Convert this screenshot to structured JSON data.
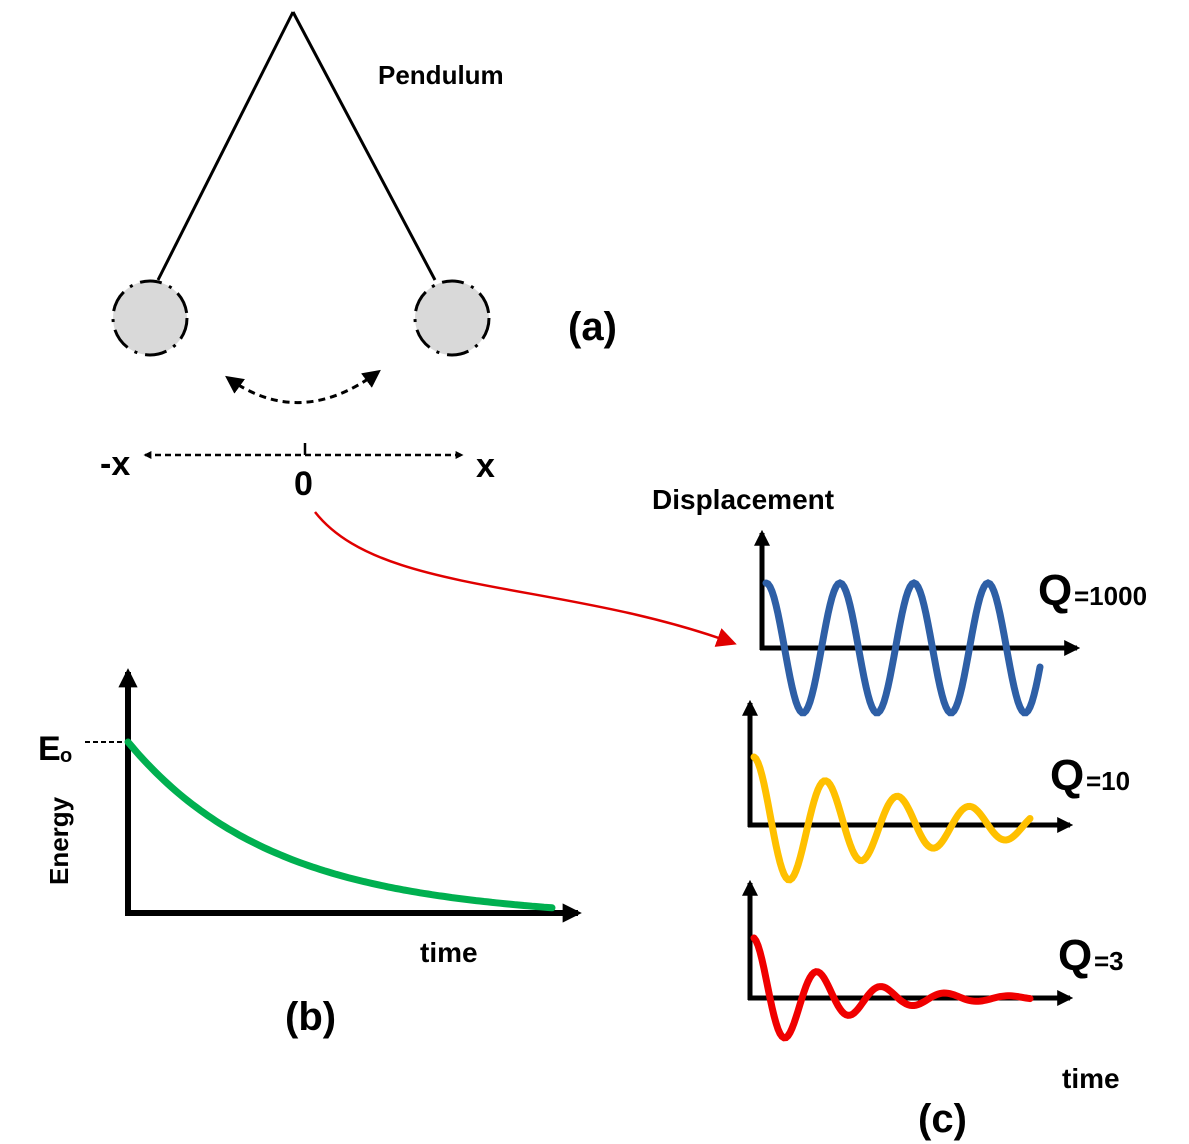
{
  "panel_a": {
    "title": "Pendulum",
    "label": "(a)",
    "axis": {
      "left": "-x",
      "center": "0",
      "right": "x"
    }
  },
  "panel_b": {
    "label": "(b)",
    "y_label": "Energy",
    "x_label": "time",
    "start_level": {
      "symbol": "E",
      "subscript": "o"
    }
  },
  "panel_c": {
    "label": "(c)",
    "y_label": "Displacement",
    "x_label": "time",
    "waveforms": [
      {
        "symbol": "Q",
        "subscript": "=1000"
      },
      {
        "symbol": "Q",
        "subscript": "=10"
      },
      {
        "symbol": "Q",
        "subscript": "=3"
      }
    ]
  }
}
